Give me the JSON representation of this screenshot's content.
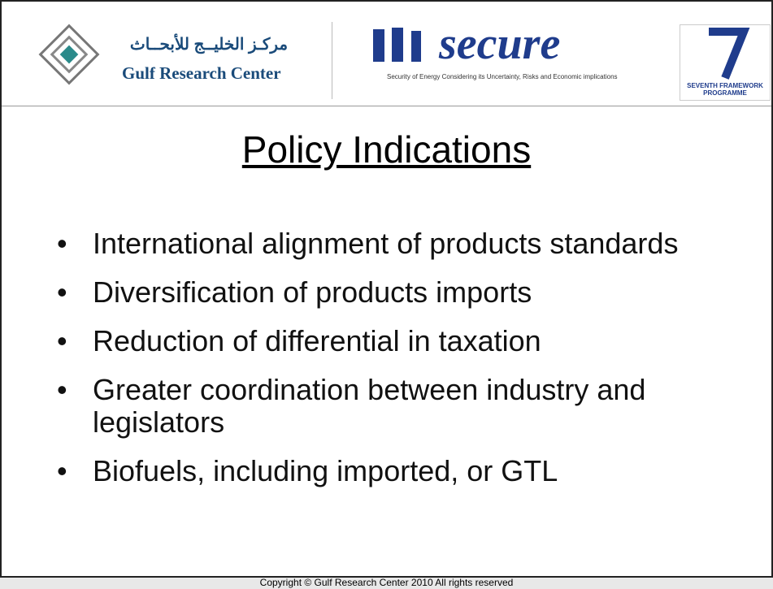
{
  "header": {
    "logo_arabic": "مركـز الخليــج للأبحــاث",
    "logo_english": "Gulf Research Center",
    "secure_title": "secure",
    "secure_subtitle": "Security of Energy Considering its Uncertainty, Risks and Economic implications",
    "fp7_label": "SEVENTH FRAMEWORK PROGRAMME"
  },
  "slide": {
    "title": "Policy Indications",
    "bullets": [
      "International alignment of products standards",
      "Diversification of products imports",
      "Reduction of differential in taxation",
      "Greater coordination between industry and legislators",
      "Biofuels, including imported, or GTL"
    ]
  },
  "footer": {
    "copyright": "Copyright © Gulf Research Center 2010 All rights reserved"
  }
}
